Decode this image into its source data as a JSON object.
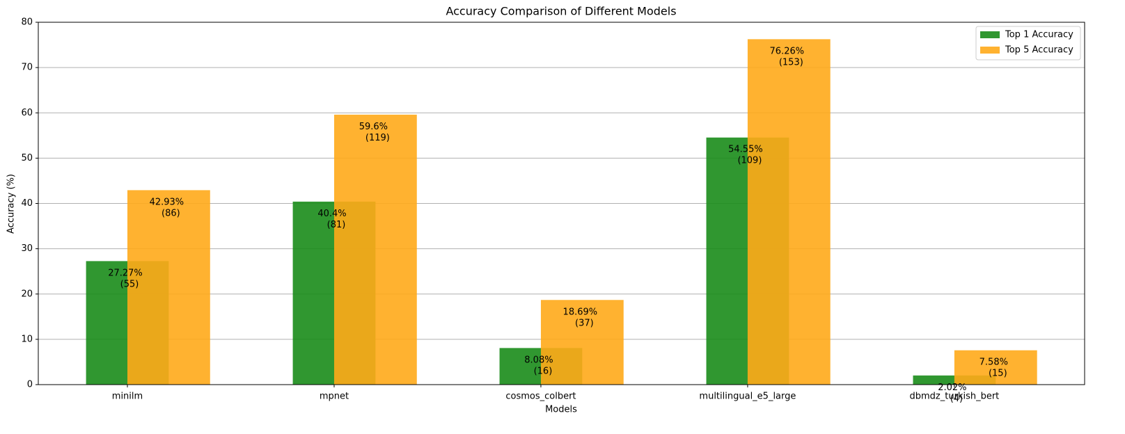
{
  "chart_data": {
    "type": "bar",
    "title": "Accuracy Comparison of Different Models",
    "x_label": "Models",
    "y_label": "Accuracy (%)",
    "categories": [
      "minilm",
      "mpnet",
      "cosmos_colbert",
      "multilingual_e5_large",
      "dbmdz_turkish_bert"
    ],
    "series": [
      {
        "name": "Top 1 Accuracy",
        "color": "#1a8c1a",
        "values": [
          27.27,
          40.4,
          8.08,
          54.55,
          2.02
        ],
        "value_labels": [
          [
            "27.27%",
            "(55)"
          ],
          [
            "40.4%",
            "(81)"
          ],
          [
            "8.08%",
            "(16)"
          ],
          [
            "54.55%",
            "(109)"
          ],
          [
            "2.02%",
            "(4)"
          ]
        ]
      },
      {
        "name": "Top 5 Accuracy",
        "color": "#ffaa1a",
        "values": [
          42.93,
          59.6,
          18.69,
          76.26,
          7.58
        ],
        "value_labels": [
          [
            "42.93%",
            "(86)"
          ],
          [
            "59.6%",
            "(119)"
          ],
          [
            "18.69%",
            "(37)"
          ],
          [
            "76.26%",
            "(153)"
          ],
          [
            "7.58%",
            "(15)"
          ]
        ]
      }
    ],
    "ylim": [
      0,
      80
    ],
    "yticks": [
      0,
      10,
      20,
      30,
      40,
      50,
      60,
      70,
      80
    ],
    "grid": true,
    "legend": "upper-right"
  }
}
